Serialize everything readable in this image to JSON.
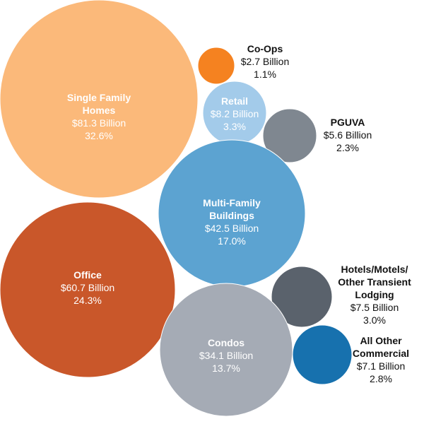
{
  "chart_data": {
    "type": "bubble",
    "unit": "Billion",
    "items": [
      {
        "name": [
          "Single Family",
          "Homes"
        ],
        "value": "$81.3 Billion",
        "amount": 81.3,
        "share": "32.6%",
        "color": "#fbb97a",
        "label_inside": true
      },
      {
        "name": [
          "Co-Ops"
        ],
        "value": "$2.7 Billion",
        "amount": 2.7,
        "share": "1.1%",
        "color": "#f58220",
        "label_inside": false
      },
      {
        "name": [
          "Retail"
        ],
        "value": "$8.2 Billion",
        "amount": 8.2,
        "share": "3.3%",
        "color": "#a3cbea",
        "label_inside": true
      },
      {
        "name": [
          "PGUVA"
        ],
        "value": "$5.6 Billion",
        "amount": 5.6,
        "share": "2.3%",
        "color": "#7f8790",
        "label_inside": false
      },
      {
        "name": [
          "Multi-Family",
          "Buildings"
        ],
        "value": "$42.5 Billion",
        "amount": 42.5,
        "share": "17.0%",
        "color": "#5ca3d1",
        "label_inside": true
      },
      {
        "name": [
          "Office"
        ],
        "value": "$60.7 Billion",
        "amount": 60.7,
        "share": "24.3%",
        "color": "#c9572a",
        "label_inside": true
      },
      {
        "name": [
          "Hotels/Motels/",
          "Other Transient",
          "Lodging"
        ],
        "value": "$7.5 Billion",
        "amount": 7.5,
        "share": "3.0%",
        "color": "#5a626c",
        "label_inside": false
      },
      {
        "name": [
          "Condos"
        ],
        "value": "$34.1 Billion",
        "amount": 34.1,
        "share": "13.7%",
        "color": "#a5abb5",
        "label_inside": true
      },
      {
        "name": [
          "All Other",
          "Commercial"
        ],
        "value": "$7.1 Billion",
        "amount": 7.1,
        "share": "2.8%",
        "color": "#1771ae",
        "label_inside": false
      }
    ]
  }
}
